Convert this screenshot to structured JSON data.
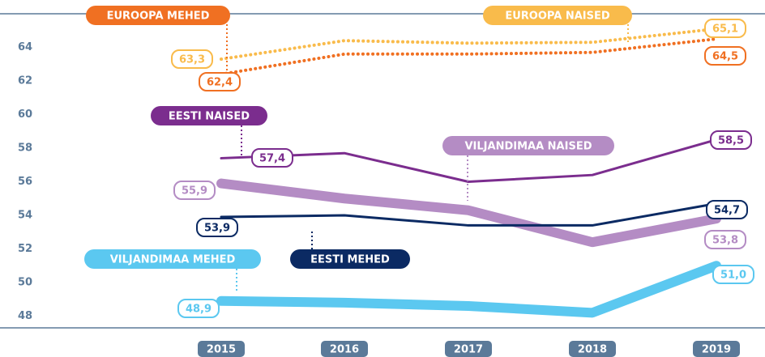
{
  "chart_data": {
    "type": "line",
    "categories": [
      "2015",
      "2016",
      "2017",
      "2018",
      "2019"
    ],
    "ylim": [
      47.3,
      66
    ],
    "yticks": [
      48,
      50,
      52,
      54,
      56,
      58,
      60,
      62,
      64
    ],
    "series": [
      {
        "name": "EUROOPA NAISED",
        "color": "#f9bb4b",
        "dash": true,
        "width": 4,
        "values": [
          63.3,
          64.4,
          64.25,
          64.3,
          65.1
        ],
        "value_labels": [
          "63,3",
          null,
          null,
          null,
          "65,1"
        ]
      },
      {
        "name": "EUROOPA MEHED",
        "color": "#f07022",
        "dash": true,
        "width": 4,
        "values": [
          62.4,
          63.6,
          63.6,
          63.7,
          64.5
        ],
        "value_labels": [
          "62,4",
          null,
          null,
          null,
          "64,5"
        ]
      },
      {
        "name": "EESTI NAISED",
        "color": "#7b2d8e",
        "dash": false,
        "width": 3,
        "values": [
          57.4,
          57.7,
          56.0,
          56.4,
          58.5
        ],
        "value_labels": [
          "57,4",
          null,
          null,
          null,
          "58,5"
        ]
      },
      {
        "name": "VILJANDIMAA NAISED",
        "color": "#b48cc4",
        "dash": false,
        "width": 12,
        "values": [
          55.9,
          55.0,
          54.3,
          52.4,
          53.8
        ],
        "value_labels": [
          "55,9",
          null,
          null,
          null,
          "53,8"
        ]
      },
      {
        "name": "EESTI MEHED",
        "color": "#0b2a63",
        "dash": false,
        "width": 3,
        "values": [
          53.9,
          54.0,
          53.4,
          53.4,
          54.7
        ],
        "value_labels": [
          "53,9",
          null,
          null,
          null,
          "54,7"
        ]
      },
      {
        "name": "VILJANDIMAA MEHED",
        "color": "#5bc8f0",
        "dash": false,
        "width": 12,
        "values": [
          48.9,
          48.8,
          48.6,
          48.2,
          51.0
        ],
        "value_labels": [
          "48,9",
          null,
          null,
          null,
          "51,0"
        ]
      }
    ]
  }
}
